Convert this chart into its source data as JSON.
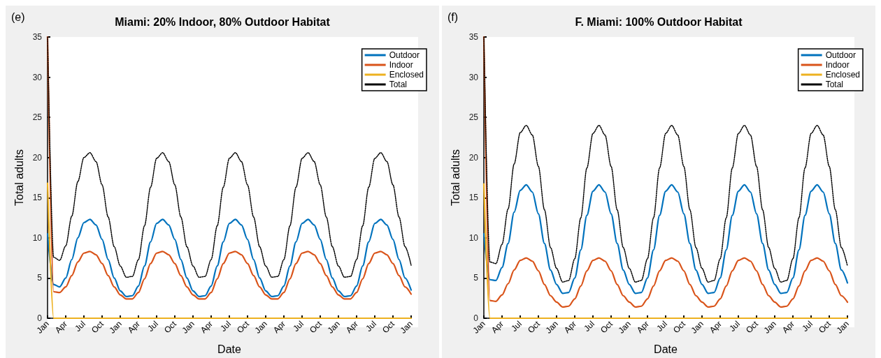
{
  "chart_data": [
    {
      "type": "line",
      "title": "Miami: 20% Indoor, 80% Outdoor Habitat",
      "xlabel": "Date",
      "ylabel": "Total adults",
      "annotations": [
        "(e)"
      ],
      "legend": "top right",
      "grid": false,
      "marker": "none",
      "line_style": "solid",
      "ylim": [
        0,
        35
      ],
      "yticks": [
        0,
        5,
        10,
        15,
        20,
        25,
        30,
        35
      ],
      "categories": [
        "Jan",
        null,
        null,
        "Apr",
        null,
        null,
        "Jul",
        null,
        null,
        "Oct",
        null,
        null,
        "Jan",
        null,
        null,
        "Apr",
        null,
        null,
        "Jul",
        null,
        null,
        "Oct",
        null,
        null,
        "Jan",
        null,
        null,
        "Apr",
        null,
        null,
        "Jul",
        null,
        null,
        "Oct",
        null,
        null,
        "Jan",
        null,
        null,
        "Apr",
        null,
        null,
        "Jul",
        null,
        null,
        "Oct",
        null,
        null,
        "Jan",
        null,
        null,
        "Apr",
        null,
        null,
        "Jul",
        null,
        null,
        "Oct",
        null,
        null,
        "Jan"
      ],
      "series": [
        {
          "name": "Outdoor",
          "color": "#0072bd",
          "values": [
            10.5,
            4.2,
            3.9,
            5.0,
            7.3,
            10.0,
            11.9,
            12.3,
            11.6,
            9.8,
            7.3,
            5.0,
            3.4,
            2.7,
            2.8,
            4.0,
            6.5,
            9.5,
            11.8,
            12.3,
            11.6,
            9.8,
            7.3,
            5.0,
            3.4,
            2.7,
            2.8,
            4.0,
            6.5,
            9.5,
            11.8,
            12.3,
            11.6,
            9.8,
            7.3,
            5.0,
            3.4,
            2.7,
            2.8,
            4.0,
            6.5,
            9.5,
            11.8,
            12.3,
            11.6,
            9.8,
            7.3,
            5.0,
            3.4,
            2.7,
            2.8,
            4.0,
            6.5,
            9.5,
            11.8,
            12.3,
            11.6,
            9.8,
            7.3,
            5.0,
            3.5
          ]
        },
        {
          "name": "Indoor",
          "color": "#d95319",
          "values": [
            35,
            3.3,
            3.2,
            3.9,
            5.3,
            7.0,
            8.1,
            8.3,
            7.9,
            6.8,
            5.3,
            3.9,
            2.9,
            2.4,
            2.4,
            3.2,
            4.9,
            6.8,
            8.1,
            8.3,
            7.9,
            6.8,
            5.3,
            3.9,
            2.9,
            2.4,
            2.4,
            3.2,
            4.9,
            6.8,
            8.1,
            8.3,
            7.9,
            6.8,
            5.3,
            3.9,
            2.9,
            2.4,
            2.4,
            3.2,
            4.9,
            6.8,
            8.1,
            8.3,
            7.9,
            6.8,
            5.3,
            3.9,
            2.9,
            2.4,
            2.4,
            3.2,
            4.9,
            6.8,
            8.1,
            8.3,
            7.9,
            6.8,
            5.3,
            3.9,
            3.0
          ]
        },
        {
          "name": "Enclosed",
          "color": "#edb120",
          "values": [
            16.8,
            0,
            0,
            0,
            0,
            0,
            0,
            0,
            0,
            0,
            0,
            0,
            0,
            0,
            0,
            0,
            0,
            0,
            0,
            0,
            0,
            0,
            0,
            0,
            0,
            0,
            0,
            0,
            0,
            0,
            0,
            0,
            0,
            0,
            0,
            0,
            0,
            0,
            0,
            0,
            0,
            0,
            0,
            0,
            0,
            0,
            0,
            0,
            0,
            0,
            0,
            0,
            0,
            0,
            0,
            0,
            0,
            0,
            0,
            0,
            0
          ]
        },
        {
          "name": "Total",
          "color": "#000000",
          "line_style": "dotted",
          "values": [
            35,
            7.6,
            7.2,
            9.0,
            12.7,
            17.0,
            20.0,
            20.6,
            19.5,
            16.6,
            12.6,
            8.9,
            6.5,
            5.1,
            5.2,
            7.3,
            11.5,
            16.3,
            19.9,
            20.6,
            19.5,
            16.6,
            12.6,
            8.9,
            6.5,
            5.1,
            5.2,
            7.3,
            11.5,
            16.3,
            19.9,
            20.6,
            19.5,
            16.6,
            12.6,
            8.9,
            6.5,
            5.1,
            5.2,
            7.3,
            11.5,
            16.3,
            19.9,
            20.6,
            19.5,
            16.6,
            12.6,
            8.9,
            6.5,
            5.1,
            5.2,
            7.3,
            11.5,
            16.3,
            19.9,
            20.6,
            19.5,
            16.6,
            12.6,
            8.9,
            6.6
          ]
        }
      ]
    },
    {
      "type": "line",
      "title": "F. Miami: 100% Outdoor Habitat",
      "xlabel": "Date",
      "ylabel": "Total adults",
      "annotations": [
        "(f)"
      ],
      "legend": "top right",
      "grid": false,
      "marker": "none",
      "line_style": "solid",
      "ylim": [
        0,
        35
      ],
      "yticks": [
        0,
        5,
        10,
        15,
        20,
        25,
        30,
        35
      ],
      "categories": [
        "Jan",
        null,
        null,
        "Apr",
        null,
        null,
        "Jul",
        null,
        null,
        "Oct",
        null,
        null,
        "Jan",
        null,
        null,
        "Apr",
        null,
        null,
        "Jul",
        null,
        null,
        "Oct",
        null,
        null,
        "Jan",
        null,
        null,
        "Apr",
        null,
        null,
        "Jul",
        null,
        null,
        "Oct",
        null,
        null,
        "Jan",
        null,
        null,
        "Apr",
        null,
        null,
        "Jul",
        null,
        null,
        "Oct",
        null,
        null,
        "Jan",
        null,
        null,
        "Apr",
        null,
        null,
        "Jul",
        null,
        null,
        "Oct",
        null,
        null,
        "Jan"
      ],
      "series": [
        {
          "name": "Outdoor",
          "color": "#0072bd",
          "values": [
            10.5,
            4.8,
            4.7,
            6.3,
            9.3,
            13.2,
            15.9,
            16.6,
            15.7,
            13.0,
            9.3,
            6.0,
            4.2,
            3.1,
            3.2,
            5.0,
            8.5,
            12.8,
            15.8,
            16.6,
            15.7,
            13.0,
            9.3,
            6.0,
            4.2,
            3.1,
            3.2,
            5.0,
            8.5,
            12.8,
            15.8,
            16.6,
            15.7,
            13.0,
            9.3,
            6.0,
            4.2,
            3.1,
            3.2,
            5.0,
            8.5,
            12.8,
            15.8,
            16.6,
            15.7,
            13.0,
            9.3,
            6.0,
            4.2,
            3.1,
            3.2,
            5.0,
            8.5,
            12.8,
            15.8,
            16.6,
            15.7,
            13.0,
            9.3,
            6.0,
            4.4
          ]
        },
        {
          "name": "Indoor",
          "color": "#d95319",
          "values": [
            35,
            2.2,
            2.1,
            2.9,
            4.3,
            6.0,
            7.2,
            7.5,
            7.1,
            5.9,
            4.2,
            2.8,
            2.0,
            1.4,
            1.5,
            2.4,
            4.0,
            5.9,
            7.2,
            7.5,
            7.1,
            5.9,
            4.2,
            2.8,
            2.0,
            1.4,
            1.5,
            2.4,
            4.0,
            5.9,
            7.2,
            7.5,
            7.1,
            5.9,
            4.2,
            2.8,
            2.0,
            1.4,
            1.5,
            2.4,
            4.0,
            5.9,
            7.2,
            7.5,
            7.1,
            5.9,
            4.2,
            2.8,
            2.0,
            1.4,
            1.5,
            2.4,
            4.0,
            5.9,
            7.2,
            7.5,
            7.1,
            5.9,
            4.2,
            2.8,
            2.0
          ]
        },
        {
          "name": "Enclosed",
          "color": "#edb120",
          "values": [
            16.7,
            0,
            0,
            0,
            0,
            0,
            0,
            0,
            0,
            0,
            0,
            0,
            0,
            0,
            0,
            0,
            0,
            0,
            0,
            0,
            0,
            0,
            0,
            0,
            0,
            0,
            0,
            0,
            0,
            0,
            0,
            0,
            0,
            0,
            0,
            0,
            0,
            0,
            0,
            0,
            0,
            0,
            0,
            0,
            0,
            0,
            0,
            0,
            0,
            0,
            0,
            0,
            0,
            0,
            0,
            0,
            0,
            0,
            0,
            0,
            0
          ]
        },
        {
          "name": "Total",
          "color": "#000000",
          "line_style": "dotted",
          "values": [
            35,
            7.0,
            6.8,
            9.2,
            13.6,
            19.2,
            23.1,
            24.0,
            22.8,
            18.9,
            13.5,
            8.8,
            6.2,
            4.5,
            4.7,
            7.4,
            12.5,
            18.7,
            23.0,
            24.0,
            22.8,
            18.9,
            13.5,
            8.8,
            6.2,
            4.5,
            4.7,
            7.4,
            12.5,
            18.7,
            23.0,
            24.0,
            22.8,
            18.9,
            13.5,
            8.8,
            6.2,
            4.5,
            4.7,
            7.4,
            12.5,
            18.7,
            23.0,
            24.0,
            22.8,
            18.9,
            13.5,
            8.8,
            6.2,
            4.5,
            4.7,
            7.4,
            12.5,
            18.7,
            23.0,
            24.0,
            22.8,
            18.9,
            13.5,
            8.8,
            6.5
          ]
        }
      ]
    }
  ]
}
